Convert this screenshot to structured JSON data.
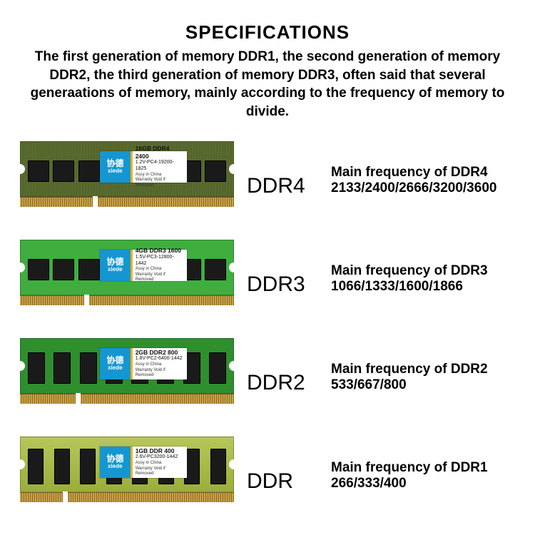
{
  "header": {
    "title": "SPECIFICATIONS",
    "subtitle": "The first generation of memory DDR1, the second generation of memory DDR2, the third generation of memory DDR3, often said that several generaations of memory, mainly according to the frequency of memory to divide."
  },
  "brand": {
    "cn": "协德",
    "en": "xiede"
  },
  "sticker_common": {
    "assy": "Assy in China",
    "warranty": "Warranty Void if Removed"
  },
  "modules": [
    {
      "type_label": "DDR4",
      "desc_line1": "Main frequency of DDR4",
      "desc_line2": "2133/2400/2666/3200/3600",
      "pcb_color": "#5a6b2f",
      "pcb_texture": "dark",
      "chip_style": "square",
      "chip_count": 8,
      "notch_left_pct": 34,
      "sticker": {
        "main": "16GB DDR4 2400",
        "sub": "1.2V-PC4-19200-1825"
      }
    },
    {
      "type_label": "DDR3",
      "desc_line1": "Main frequency of DDR3",
      "desc_line2": "1066/1333/1600/1866",
      "pcb_color": "#3fae3f",
      "pcb_texture": "bright",
      "chip_style": "square",
      "chip_count": 8,
      "notch_left_pct": 30,
      "sticker": {
        "main": "4GB DDR3 1600",
        "sub": "1.5V-PC3-12800-1442"
      }
    },
    {
      "type_label": "DDR2",
      "desc_line1": "Main frequency of DDR2",
      "desc_line2": "533/667/800",
      "pcb_color": "#2f8f2f",
      "pcb_texture": "bright",
      "chip_style": "tall",
      "chip_count": 8,
      "notch_left_pct": 26,
      "sticker": {
        "main": "2GB DDR2 800",
        "sub": "1.8V-PC2-6400-1442"
      }
    },
    {
      "type_label": "DDR",
      "desc_line1": "Main frequency of DDR1",
      "desc_line2": "266/333/400",
      "pcb_color": "#9aae3b",
      "pcb_texture": "olive",
      "chip_style": "tall2",
      "chip_count": 8,
      "notch_left_pct": 20,
      "sticker": {
        "main": "1GB DDR 400",
        "sub": "2.6V-PC3200-1442"
      }
    }
  ],
  "colors": {
    "sticker_brand_bg": "#1596d1",
    "sticker_accent": "#f3b21b",
    "contact_gold_a": "#c9a24a",
    "contact_gold_b": "#8a6a1f"
  }
}
